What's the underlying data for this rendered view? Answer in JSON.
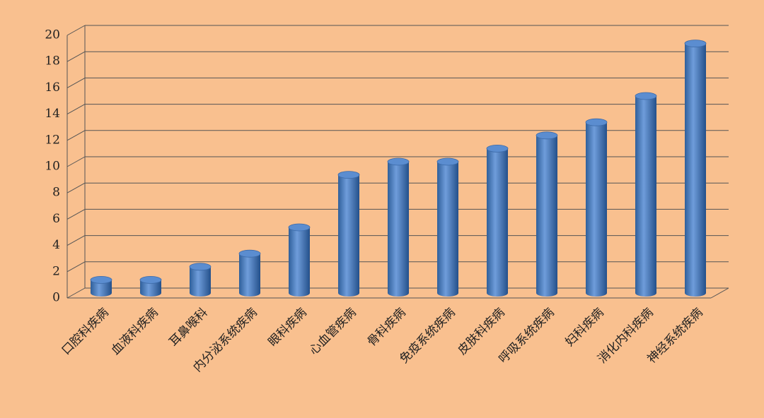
{
  "chart_data": {
    "type": "bar",
    "categories": [
      "口腔科疾病",
      "血液科疾病",
      "耳鼻喉科",
      "内分泌系统疾病",
      "眼科疾病",
      "心血管疾病",
      "骨科疾病",
      "免疫系统疾病",
      "皮肤科疾病",
      "呼吸系统疾病",
      "妇科疾病",
      "消化内科疾病",
      "神经系统疾病"
    ],
    "values": [
      1,
      1,
      2,
      3,
      5,
      9,
      10,
      10,
      11,
      12,
      13,
      15,
      19
    ],
    "color": "#4f81bd",
    "ylim": [
      0,
      20
    ],
    "yticks": [
      0,
      2,
      4,
      6,
      8,
      10,
      12,
      14,
      16,
      18,
      20
    ],
    "grid": true
  }
}
